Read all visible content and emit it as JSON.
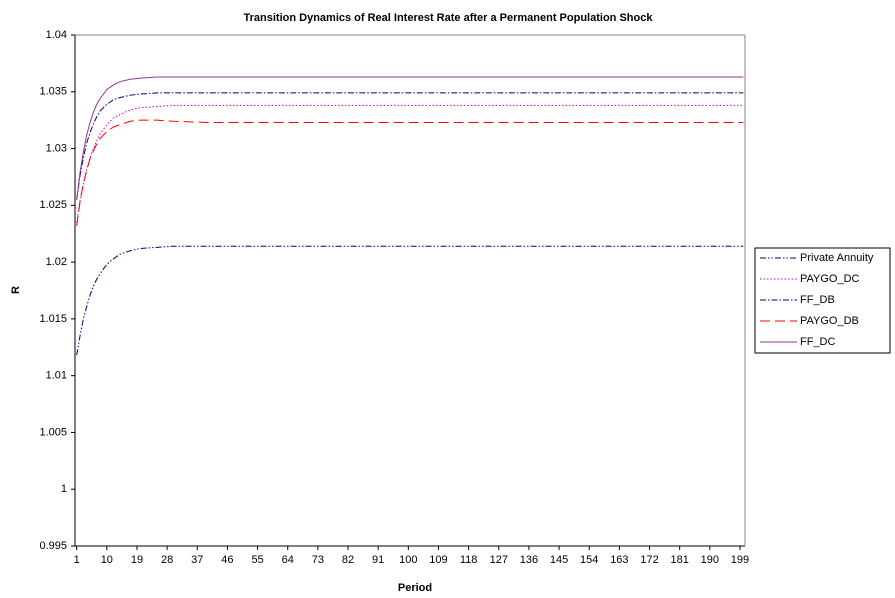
{
  "chart_data": {
    "type": "line",
    "title": "Transition Dynamics of Real Interest Rate after a Permanent Population Shock",
    "x_label": "Period",
    "y_label": "R",
    "x": [
      1,
      2,
      3,
      4,
      5,
      6,
      7,
      8,
      10,
      12,
      14,
      17,
      20,
      25,
      30,
      40,
      60,
      80,
      100,
      120,
      140,
      160,
      180,
      200
    ],
    "series": [
      {
        "name": "Private Annuity",
        "color": "#000080",
        "dash": "dashdotdot",
        "values": [
          1.0118,
          1.0135,
          1.015,
          1.0161,
          1.0171,
          1.0179,
          1.0185,
          1.019,
          1.0198,
          1.0203,
          1.0207,
          1.021,
          1.0212,
          1.0213,
          1.0214,
          1.0214,
          1.0214,
          1.0214,
          1.0214,
          1.0214,
          1.0214,
          1.0214,
          1.0214,
          1.0214
        ]
      },
      {
        "name": "PAYGO_DC",
        "color": "#cc00cc",
        "dash": "dot",
        "values": [
          1.0235,
          1.0254,
          1.0269,
          1.0282,
          1.0292,
          1.03,
          1.0307,
          1.0313,
          1.0321,
          1.0327,
          1.033,
          1.0334,
          1.0336,
          1.0337,
          1.0338,
          1.0338,
          1.0338,
          1.0338,
          1.0338,
          1.0338,
          1.0338,
          1.0338,
          1.0338,
          1.0338
        ]
      },
      {
        "name": "FF_DB",
        "color": "#000080",
        "dash": "dashdot",
        "values": [
          1.0255,
          1.0276,
          1.0292,
          1.0305,
          1.0314,
          1.0322,
          1.0328,
          1.0333,
          1.0339,
          1.0343,
          1.0345,
          1.0347,
          1.0348,
          1.0349,
          1.0349,
          1.0349,
          1.0349,
          1.0349,
          1.0349,
          1.0349,
          1.0349,
          1.0349,
          1.0349,
          1.0349
        ]
      },
      {
        "name": "PAYGO_DB",
        "color": "#ff0000",
        "dash": "longdash",
        "values": [
          1.0232,
          1.0253,
          1.0269,
          1.0281,
          1.0291,
          1.0298,
          1.0304,
          1.0309,
          1.0315,
          1.0319,
          1.0321,
          1.0324,
          1.0325,
          1.0325,
          1.0324,
          1.0323,
          1.0323,
          1.0323,
          1.0323,
          1.0323,
          1.0323,
          1.0323,
          1.0323,
          1.0323
        ]
      },
      {
        "name": "FF_DC",
        "color": "#993399",
        "dash": "solid",
        "values": [
          1.0255,
          1.0279,
          1.0297,
          1.0312,
          1.0323,
          1.0332,
          1.0339,
          1.0344,
          1.0352,
          1.0356,
          1.0359,
          1.0361,
          1.0362,
          1.0363,
          1.0363,
          1.0363,
          1.0363,
          1.0363,
          1.0363,
          1.0363,
          1.0363,
          1.0363,
          1.0363,
          1.0363
        ]
      }
    ],
    "xlim": [
      0.5,
      200.5
    ],
    "xticks": [
      1,
      10,
      19,
      28,
      37,
      46,
      55,
      64,
      73,
      82,
      91,
      100,
      109,
      118,
      127,
      136,
      145,
      154,
      163,
      172,
      181,
      190,
      199
    ],
    "ylim": [
      0.995,
      1.04
    ],
    "yticks": [
      0.995,
      1,
      1.005,
      1.01,
      1.015,
      1.02,
      1.025,
      1.03,
      1.035,
      1.04
    ],
    "grid": false,
    "legend": "right"
  }
}
